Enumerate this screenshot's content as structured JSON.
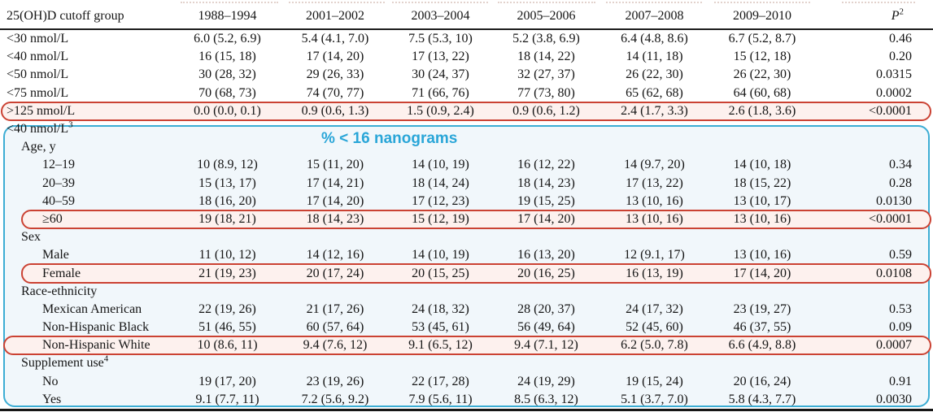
{
  "annotation": {
    "label": "% < 16 nanograms",
    "cyan_color": "#2aa6d8",
    "red_color": "#cb4233"
  },
  "table": {
    "headers": [
      {
        "label": "25(OH)D cutoff group"
      },
      {
        "label": "1988–1994"
      },
      {
        "label": "2001–2002"
      },
      {
        "label": "2003–2004"
      },
      {
        "label": "2005–2006"
      },
      {
        "label": "2007–2008"
      },
      {
        "label": "2009–2010"
      },
      {
        "label": "P",
        "sup": "2",
        "italic": true
      }
    ],
    "rows": [
      {
        "label": "<30 nmol/L",
        "indent": 0,
        "values": [
          "6.0 (5.2, 6.9)",
          "5.4 (4.1, 7.0)",
          "7.5 (5.3, 10)",
          "5.2 (3.8, 6.9)",
          "6.4 (4.8, 8.6)",
          "6.7 (5.2, 8.7)"
        ],
        "p": "0.46"
      },
      {
        "label": "<40 nmol/L",
        "indent": 0,
        "values": [
          "16 (15, 18)",
          "17 (14, 20)",
          "17 (13, 22)",
          "18 (14, 22)",
          "14 (11, 18)",
          "15 (12, 18)"
        ],
        "p": "0.20"
      },
      {
        "label": "<50 nmol/L",
        "indent": 0,
        "values": [
          "30 (28, 32)",
          "29 (26, 33)",
          "30 (24, 37)",
          "32 (27, 37)",
          "26 (22, 30)",
          "26 (22, 30)"
        ],
        "p": "0.0315"
      },
      {
        "label": "<75 nmol/L",
        "indent": 0,
        "values": [
          "70 (68, 73)",
          "74 (70, 77)",
          "71 (66, 76)",
          "77 (73, 80)",
          "65 (62, 68)",
          "64 (60, 68)"
        ],
        "p": "0.0002"
      },
      {
        "label": ">125 nmol/L",
        "indent": 0,
        "values": [
          "0.0 (0.0, 0.1)",
          "0.9 (0.6, 1.3)",
          "1.5 (0.9, 2.4)",
          "0.9 (0.6, 1.2)",
          "2.4 (1.7, 3.3)",
          "2.6 (1.8, 3.6)"
        ],
        "p": "<0.0001",
        "circled": true,
        "circle_inset": 1
      },
      {
        "label": "<40 nmol/L",
        "sup": "3",
        "indent": 0,
        "section": true
      },
      {
        "label": "Age, y",
        "indent": 1,
        "section": true
      },
      {
        "label": "12–19",
        "indent": 2,
        "values": [
          "10 (8.9, 12)",
          "15 (11, 20)",
          "14 (10, 19)",
          "16 (12, 22)",
          "14 (9.7, 20)",
          "14 (10, 18)"
        ],
        "p": "0.34"
      },
      {
        "label": "20–39",
        "indent": 2,
        "values": [
          "15 (13, 17)",
          "17 (14, 21)",
          "18 (14, 24)",
          "18 (14, 23)",
          "17 (13, 22)",
          "18 (15, 22)"
        ],
        "p": "0.28"
      },
      {
        "label": "40–59",
        "indent": 2,
        "values": [
          "18 (16, 20)",
          "17 (14, 20)",
          "17 (12, 23)",
          "19 (15, 25)",
          "13 (10, 16)",
          "13 (10, 17)"
        ],
        "p": "0.0130"
      },
      {
        "label": "≥60",
        "indent": 2,
        "values": [
          "19 (18, 21)",
          "18 (14, 23)",
          "15 (12, 19)",
          "17 (14, 20)",
          "13 (10, 16)",
          "13 (10, 16)"
        ],
        "p": "<0.0001",
        "circled": true,
        "circle_inset": 26
      },
      {
        "label": "Sex",
        "indent": 1,
        "section": true
      },
      {
        "label": "Male",
        "indent": 2,
        "values": [
          "11 (10, 12)",
          "14 (12, 16)",
          "14 (10, 19)",
          "16 (13, 20)",
          "12 (9.1, 17)",
          "13 (10, 16)"
        ],
        "p": "0.59"
      },
      {
        "label": "Female",
        "indent": 2,
        "values": [
          "21 (19, 23)",
          "20 (17, 24)",
          "20 (15, 25)",
          "20 (16, 25)",
          "16 (13, 19)",
          "17 (14, 20)"
        ],
        "p": "0.0108",
        "circled": true,
        "circle_inset": 26
      },
      {
        "label": "Race-ethnicity",
        "indent": 1,
        "section": true
      },
      {
        "label": "Mexican American",
        "indent": 2,
        "values": [
          "22 (19, 26)",
          "21 (17, 26)",
          "24 (18, 32)",
          "28 (20, 37)",
          "24 (17, 32)",
          "23 (19, 27)"
        ],
        "p": "0.53"
      },
      {
        "label": "Non-Hispanic Black",
        "indent": 2,
        "values": [
          "51 (46, 55)",
          "60 (57, 64)",
          "53 (45, 61)",
          "56 (49, 64)",
          "52 (45, 60)",
          "46 (37, 55)"
        ],
        "p": "0.09"
      },
      {
        "label": "Non-Hispanic White",
        "indent": 2,
        "values": [
          "10 (8.6, 11)",
          "9.4 (7.6, 12)",
          "9.1 (6.5, 12)",
          "9.4 (7.1, 12)",
          "6.2 (5.0, 7.8)",
          "6.6 (4.9, 8.8)"
        ],
        "p": "0.0007",
        "circled": true,
        "circle_inset": 4
      },
      {
        "label": "Supplement use",
        "sup": "4",
        "indent": 1,
        "section": true
      },
      {
        "label": "No",
        "indent": 2,
        "values": [
          "19 (17, 20)",
          "23 (19, 26)",
          "22 (17, 28)",
          "24 (19, 29)",
          "19 (15, 24)",
          "20 (16, 24)"
        ],
        "p": "0.91"
      },
      {
        "label": "Yes",
        "indent": 2,
        "values": [
          "9.1 (7.7, 11)",
          "7.2 (5.6, 9.2)",
          "7.9 (5.6, 11)",
          "8.5 (6.3, 12)",
          "5.1 (3.7, 7.0)",
          "5.8 (4.3, 7.7)"
        ],
        "p": "0.0030"
      }
    ]
  }
}
